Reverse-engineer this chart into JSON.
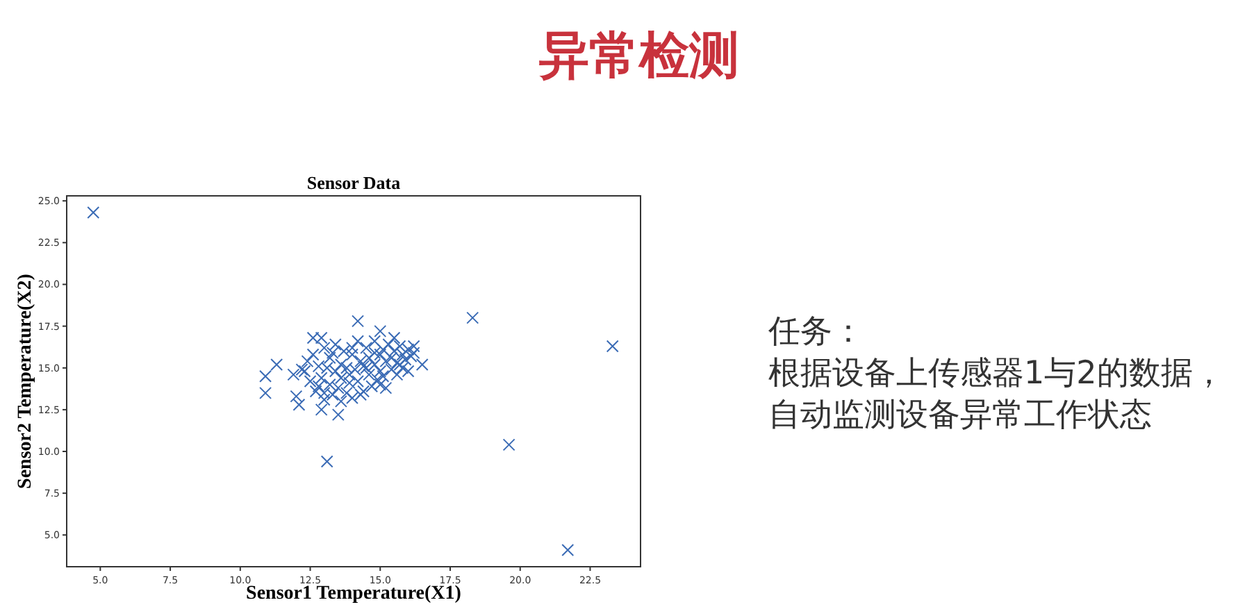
{
  "chart_data": {
    "type": "scatter",
    "title": "Sensor Data",
    "xlabel": "Sensor1 Temperature(X1)",
    "ylabel": "Sensor2 Temperature(X2)",
    "annotations": [
      "异常检测",
      "任务：",
      "根据设备上传感器1与2的数据，",
      "自动监测设备异常工作状态"
    ],
    "marker": "cross",
    "color": "#3a6bb5",
    "xlim": [
      3.8,
      24.3
    ],
    "ylim": [
      3.1,
      25.3
    ],
    "xticks": [
      {
        "value": 5,
        "label": "5.0"
      },
      7.5,
      {
        "value": 10,
        "label": "10.0"
      },
      12.5,
      {
        "value": 15,
        "label": "15.0"
      },
      17.5,
      {
        "value": 20,
        "label": "20.0"
      },
      22.5
    ],
    "yticks": [
      {
        "value": 5,
        "label": "5.0"
      },
      7.5,
      {
        "value": 10,
        "label": "10.0"
      },
      12.5,
      {
        "value": 15,
        "label": "15.0"
      },
      17.5,
      {
        "value": 20,
        "label": "20.0"
      },
      22.5,
      {
        "value": 25,
        "label": "25.0"
      }
    ],
    "x": [
      4.75,
      18.3,
      23.3,
      19.6,
      21.7,
      13.1,
      10.9,
      10.9,
      11.3,
      11.9,
      12.0,
      12.1,
      12.6,
      12.9,
      12.9,
      13.5,
      14.2,
      15.0,
      16.5,
      16.2,
      12.3,
      12.4,
      12.5,
      12.6,
      12.7,
      12.8,
      12.9,
      13.0,
      13.0,
      13.1,
      13.2,
      13.2,
      13.3,
      13.4,
      13.4,
      13.5,
      13.6,
      13.6,
      13.7,
      13.8,
      13.8,
      13.9,
      14.0,
      14.0,
      14.1,
      14.2,
      14.2,
      14.3,
      14.4,
      14.4,
      14.5,
      14.6,
      14.6,
      14.7,
      14.8,
      14.8,
      14.9,
      15.0,
      15.0,
      15.1,
      15.2,
      15.2,
      15.3,
      15.4,
      15.4,
      15.5,
      15.6,
      15.6,
      15.7,
      15.8,
      15.8,
      15.9,
      16.0,
      16.0,
      16.1,
      13.3,
      13.9,
      14.5,
      15.1,
      15.7,
      12.8,
      13.6,
      14.3,
      15.0,
      15.5,
      13.0,
      14.0,
      14.8,
      16.2,
      12.2
    ],
    "values": [
      24.3,
      18.0,
      16.3,
      10.4,
      4.1,
      9.4,
      14.5,
      13.5,
      15.2,
      14.6,
      13.3,
      12.8,
      16.8,
      12.5,
      16.8,
      12.2,
      17.8,
      17.2,
      15.2,
      16.3,
      14.8,
      15.4,
      14.2,
      15.8,
      13.6,
      15.1,
      14.4,
      16.2,
      13.1,
      15.0,
      14.0,
      15.6,
      13.4,
      14.8,
      16.4,
      13.8,
      15.2,
      14.4,
      16.0,
      13.5,
      15.0,
      14.6,
      15.8,
      13.2,
      14.9,
      16.6,
      14.2,
      15.4,
      13.6,
      15.1,
      16.2,
      14.6,
      15.6,
      13.9,
      15.2,
      16.6,
      14.3,
      15.8,
      14.8,
      16.1,
      13.8,
      15.4,
      16.4,
      14.9,
      15.6,
      16.0,
      14.6,
      15.3,
      16.3,
      15.0,
      15.8,
      15.5,
      16.1,
      14.8,
      15.7,
      15.9,
      14.1,
      15.0,
      14.5,
      15.2,
      13.9,
      13.0,
      13.4,
      14.0,
      16.8,
      13.5,
      16.2,
      15.9,
      15.9,
      14.9
    ]
  }
}
